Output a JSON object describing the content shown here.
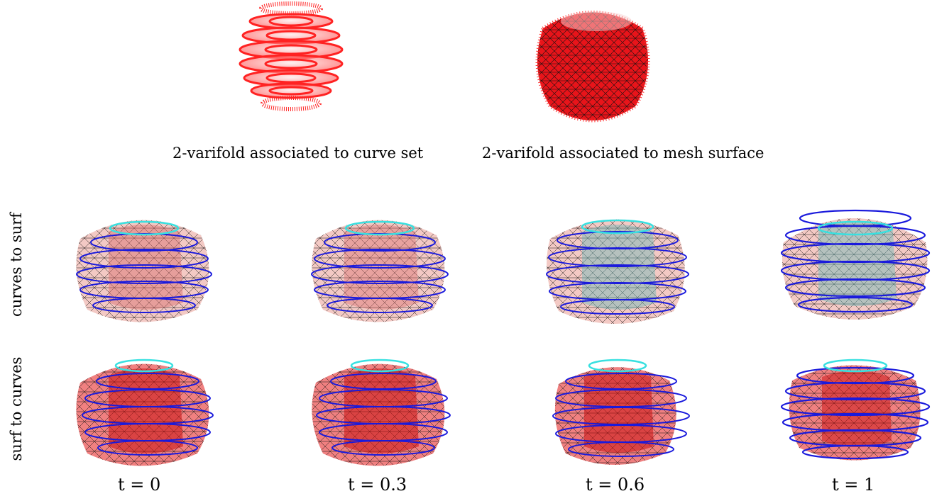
{
  "top_captions": {
    "curve_set": "2-varifold associated to curve set",
    "mesh_surface": "2-varifold associated to mesh surface"
  },
  "row_labels": {
    "row1": "curves to surf",
    "row2": "surf to curves"
  },
  "time_labels": {
    "t0": "t = 0",
    "t1": "t = 0.3",
    "t2": "t = 0.6",
    "t3": "t = 1"
  },
  "colors": {
    "mesh_red": "#e8141a",
    "mesh_light": "#f3c9c4",
    "curve_blue": "#1a1adc",
    "curve_cyan": "#38e0e0",
    "wire": "#111111"
  }
}
